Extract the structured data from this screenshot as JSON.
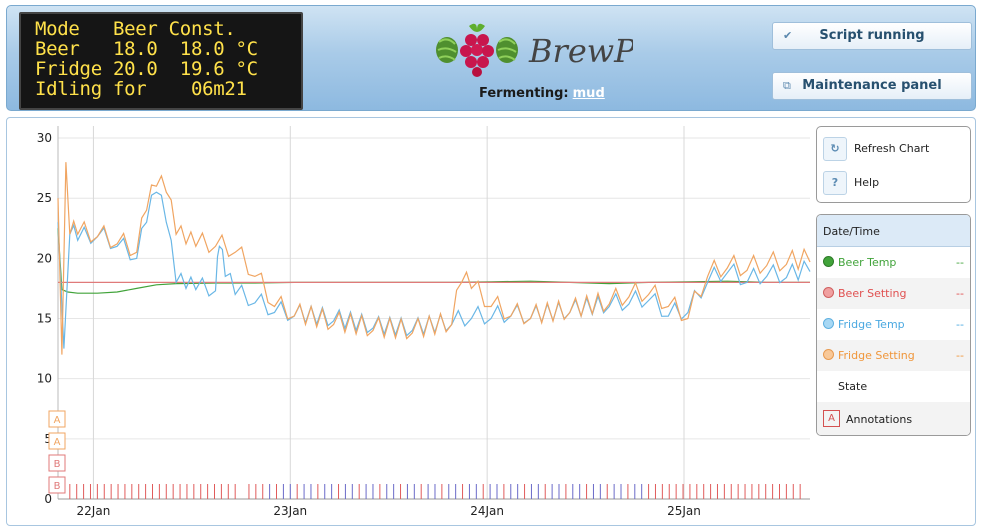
{
  "lcd": {
    "lines": [
      "Mode   Beer Const.",
      "Beer   18.0  18.0 °C",
      "Fridge 20.0  19.6 °C",
      "Idling for    06m21"
    ]
  },
  "header": {
    "logo_text": "BrewPi",
    "fermenting_label": "Fermenting:",
    "beer_name": "mud",
    "script_button": "Script running",
    "maintenance_button": "Maintenance panel",
    "script_icon": "checkmark-icon",
    "maintenance_icon": "window-icon"
  },
  "controls": {
    "refresh": "Refresh Chart",
    "help": "Help",
    "refresh_icon": "refresh-icon",
    "help_icon": "?"
  },
  "legend": {
    "header": "Date/Time",
    "items": [
      {
        "name": "Beer Temp",
        "value": "--",
        "color": "#41a33a"
      },
      {
        "name": "Beer Setting",
        "value": "--",
        "color": "#e07a7a"
      },
      {
        "name": "Fridge Temp",
        "value": "--",
        "color": "#6ab7e6"
      },
      {
        "name": "Fridge Setting",
        "value": "--",
        "color": "#f0a562"
      }
    ],
    "state": "State",
    "annotations_icon": "A",
    "annotations": "Annotations"
  },
  "chart_data": {
    "type": "line",
    "title": "",
    "xlabel": "",
    "ylabel": "",
    "ylim": [
      0,
      31
    ],
    "yticks": [
      0,
      5,
      10,
      15,
      20,
      25,
      30
    ],
    "xticks": [
      "22Jan",
      "23Jan",
      "24Jan",
      "25Jan"
    ],
    "x_range_days": [
      0.0,
      3.82
    ],
    "grid": true,
    "legend_position": "right",
    "series": [
      {
        "name": "Beer Temp",
        "color": "#41a33a",
        "x": [
          0.0,
          0.02,
          0.05,
          0.1,
          0.2,
          0.3,
          0.4,
          0.5,
          0.6,
          0.8,
          1.0,
          1.2,
          1.4,
          1.6,
          2.0,
          2.2,
          2.4,
          2.6,
          2.8,
          3.0,
          3.2,
          3.4,
          3.6,
          3.82
        ],
        "y": [
          22.5,
          17.4,
          17.2,
          17.1,
          17.1,
          17.2,
          17.5,
          17.8,
          17.9,
          17.95,
          17.95,
          18.0,
          18.0,
          18.0,
          18.0,
          18.05,
          18.1,
          18.0,
          17.9,
          18.0,
          18.05,
          18.1,
          18.0,
          18.0
        ]
      },
      {
        "name": "Beer Setting",
        "color": "#e07a7a",
        "x": [
          0.0,
          3.82
        ],
        "y": [
          18.0,
          18.0
        ]
      },
      {
        "name": "Fridge Temp",
        "color": "#6ab7e6",
        "x": [
          0.0,
          0.03,
          0.06,
          0.1,
          0.2,
          0.3,
          0.4,
          0.45,
          0.5,
          0.55,
          0.6,
          0.65,
          0.7,
          0.8,
          0.82,
          0.85,
          0.9,
          1.0,
          1.1,
          1.2,
          1.4,
          1.6,
          1.8,
          2.0,
          2.1,
          2.2,
          2.3,
          2.4,
          2.6,
          2.8,
          2.9,
          3.0,
          3.1,
          3.2,
          3.3,
          3.4,
          3.5,
          3.6,
          3.7,
          3.82
        ],
        "y": [
          23.0,
          12.5,
          22.0,
          21.5,
          21.8,
          21.0,
          20.0,
          23.0,
          25.5,
          23.0,
          18.0,
          17.5,
          17.4,
          17.3,
          21.0,
          18.5,
          17.0,
          16.3,
          15.5,
          15.2,
          14.8,
          14.2,
          14.0,
          14.5,
          15.0,
          15.0,
          15.2,
          15.0,
          15.5,
          16.0,
          16.2,
          16.5,
          15.2,
          15.5,
          18.0,
          18.8,
          18.0,
          18.5,
          18.4,
          18.9
        ]
      },
      {
        "name": "Fridge Setting",
        "color": "#f0a562",
        "x": [
          0.0,
          0.02,
          0.04,
          0.06,
          0.1,
          0.2,
          0.3,
          0.4,
          0.45,
          0.5,
          0.55,
          0.6,
          0.65,
          0.7,
          0.8,
          0.9,
          1.0,
          1.1,
          1.2,
          1.4,
          1.6,
          1.8,
          2.0,
          2.05,
          2.1,
          2.2,
          2.3,
          2.4,
          2.6,
          2.8,
          2.9,
          3.0,
          3.1,
          3.2,
          3.3,
          3.4,
          3.5,
          3.6,
          3.7,
          3.82
        ],
        "y": [
          25.0,
          12.0,
          28.0,
          22.0,
          22.0,
          21.8,
          21.2,
          20.5,
          24.0,
          26.0,
          25.5,
          22.0,
          21.2,
          21.0,
          21.0,
          20.5,
          18.5,
          16.0,
          15.2,
          14.5,
          14.0,
          13.8,
          14.5,
          18.0,
          17.5,
          16.0,
          15.2,
          15.0,
          15.5,
          16.2,
          16.8,
          17.0,
          16.0,
          15.0,
          18.5,
          19.2,
          19.0,
          19.4,
          19.5,
          19.7
        ]
      }
    ],
    "annotation_markers": [
      "A",
      "A",
      "B",
      "B"
    ],
    "state_tick_colors": {
      "idle": "#e05b5b",
      "cooling": "#6a6ac8"
    }
  }
}
